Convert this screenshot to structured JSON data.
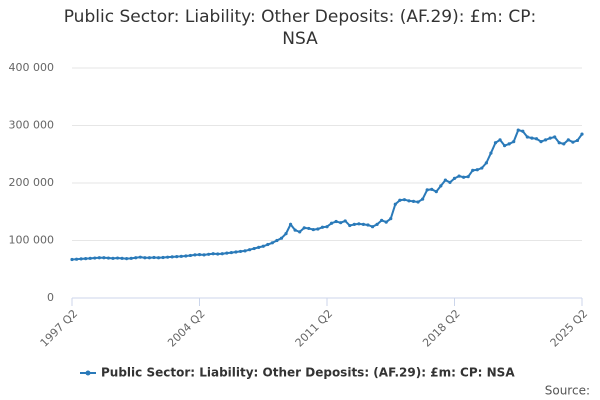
{
  "chart_data": {
    "type": "line",
    "title": "Public Sector: Liability: Other Deposits: (AF.29): £m: CP: NSA",
    "source": "Source:",
    "categories": [
      "1997 Q2",
      null,
      null,
      null,
      null,
      null,
      null,
      null,
      null,
      null,
      null,
      null,
      null,
      null,
      null,
      null,
      null,
      null,
      null,
      null,
      null,
      null,
      null,
      null,
      null,
      null,
      null,
      null,
      "2004 Q2",
      null,
      null,
      null,
      null,
      null,
      null,
      null,
      null,
      null,
      null,
      null,
      null,
      null,
      null,
      null,
      null,
      null,
      null,
      null,
      null,
      null,
      null,
      null,
      null,
      null,
      null,
      null,
      "2011 Q2",
      null,
      null,
      null,
      null,
      null,
      null,
      null,
      null,
      null,
      null,
      null,
      null,
      null,
      null,
      null,
      null,
      null,
      null,
      null,
      null,
      null,
      null,
      null,
      null,
      null,
      null,
      null,
      "2018 Q2",
      null,
      null,
      null,
      null,
      null,
      null,
      null,
      null,
      null,
      null,
      null,
      null,
      null,
      null,
      null,
      null,
      null,
      null,
      null,
      null,
      null,
      null,
      null,
      null,
      null,
      null,
      null,
      "2025 Q2"
    ],
    "series": [
      {
        "name": "Public Sector: Liability: Other Deposits: (AF.29): £m: CP: NSA",
        "color": "#2a7ab9",
        "values": [
          67000,
          67500,
          68000,
          68500,
          69000,
          69500,
          70000,
          70000,
          69500,
          69000,
          69500,
          69000,
          68500,
          69000,
          70000,
          71000,
          70000,
          70000,
          70500,
          70000,
          70500,
          71000,
          71500,
          72000,
          72500,
          73000,
          74000,
          75000,
          75500,
          75000,
          76000,
          77000,
          76500,
          77000,
          78000,
          79000,
          80000,
          81000,
          82000,
          84000,
          86000,
          88000,
          90000,
          93000,
          96000,
          100000,
          104000,
          112000,
          128000,
          118000,
          115000,
          122000,
          121000,
          119000,
          120000,
          123000,
          124000,
          130000,
          133000,
          131000,
          134000,
          126000,
          128000,
          129000,
          128000,
          127000,
          124000,
          128000,
          135000,
          132000,
          138000,
          163000,
          170000,
          171000,
          169000,
          168000,
          167000,
          172000,
          188000,
          189000,
          185000,
          195000,
          205000,
          201000,
          208000,
          212000,
          210000,
          211000,
          222000,
          223000,
          226000,
          235000,
          252000,
          270000,
          275000,
          265000,
          268000,
          272000,
          292000,
          290000,
          280000,
          278000,
          277000,
          272000,
          275000,
          278000,
          280000,
          270000,
          268000,
          275000,
          271000,
          274000,
          285000
        ]
      }
    ],
    "ylim": [
      0,
      400000
    ],
    "yticks": [
      0,
      {
        "value": 100000,
        "label": "100 000"
      },
      {
        "value": 200000,
        "label": "200 000"
      },
      {
        "value": 300000,
        "label": "300 000"
      },
      {
        "value": 400000,
        "label": "400 000"
      }
    ],
    "grid": true
  }
}
